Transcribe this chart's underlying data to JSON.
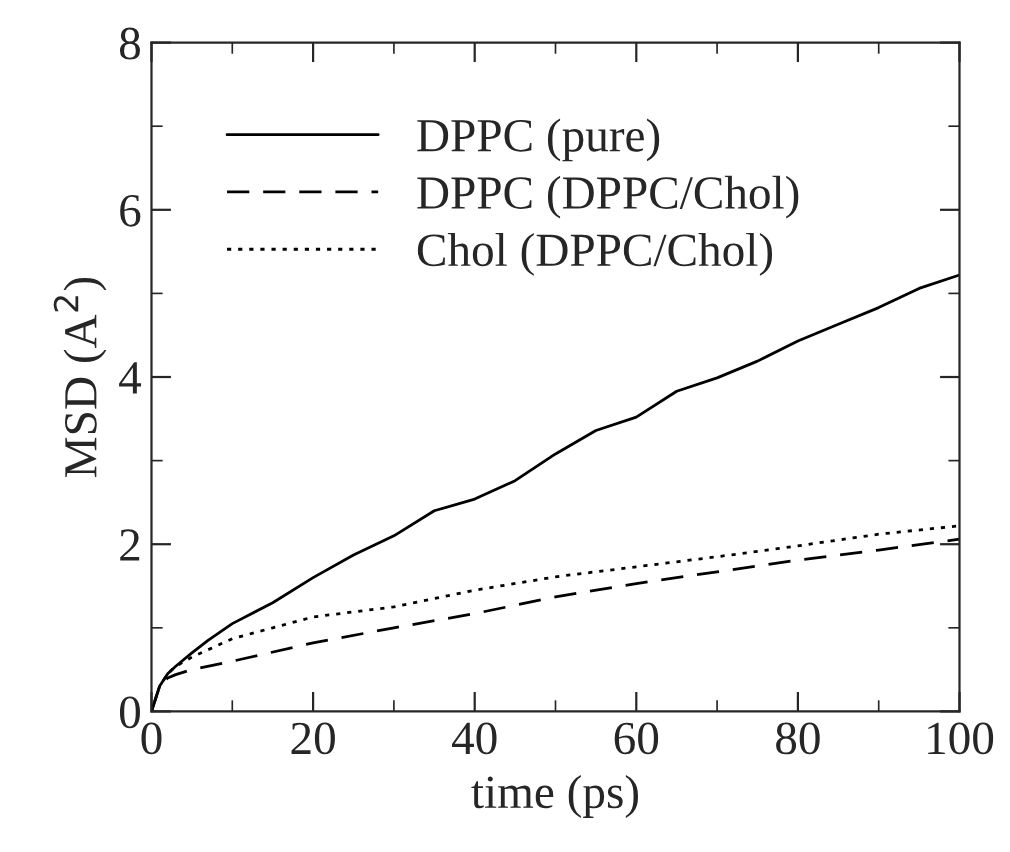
{
  "chart_data": {
    "type": "line",
    "xlabel": "time (ps)",
    "ylabel": "MSD (A$^{2}$)",
    "xlim": [
      0,
      100
    ],
    "ylim": [
      0,
      8
    ],
    "xticks": [
      0,
      20,
      40,
      60,
      80,
      100
    ],
    "yticks": [
      0,
      2,
      4,
      6,
      8
    ],
    "grid": false,
    "legend": "top left",
    "marker": "none",
    "series": [
      {
        "name": "DPPC (pure)",
        "color": "#000000",
        "line_style": "solid",
        "x": [
          0,
          1,
          2,
          3,
          5,
          7,
          10,
          15,
          20,
          25,
          30,
          35,
          40,
          45,
          50,
          55,
          60,
          65,
          70,
          75,
          80,
          85,
          90,
          95,
          100
        ],
        "values": [
          0,
          0.3,
          0.45,
          0.54,
          0.7,
          0.85,
          1.05,
          1.3,
          1.6,
          1.87,
          2.1,
          2.4,
          2.54,
          2.76,
          3.08,
          3.36,
          3.52,
          3.83,
          3.99,
          4.19,
          4.43,
          4.63,
          4.83,
          5.06,
          5.22
        ]
      },
      {
        "name": "DPPC (DPPC/Chol)",
        "color": "#000000",
        "line_style": "dashed",
        "x": [
          0,
          1,
          2,
          3,
          5,
          10,
          20,
          30,
          40,
          50,
          60,
          70,
          80,
          90,
          100
        ],
        "values": [
          0,
          0.3,
          0.4,
          0.44,
          0.5,
          0.6,
          0.82,
          1.0,
          1.17,
          1.37,
          1.53,
          1.67,
          1.81,
          1.93,
          2.06
        ]
      },
      {
        "name": "Chol (DPPC/Chol)",
        "color": "#000000",
        "line_style": "dotted",
        "x": [
          0,
          1,
          2,
          3,
          5,
          10,
          15,
          20,
          30,
          40,
          50,
          60,
          70,
          80,
          90,
          100
        ],
        "values": [
          0,
          0.3,
          0.45,
          0.54,
          0.65,
          0.87,
          1.0,
          1.13,
          1.25,
          1.45,
          1.61,
          1.73,
          1.85,
          1.98,
          2.12,
          2.22
        ]
      }
    ]
  }
}
